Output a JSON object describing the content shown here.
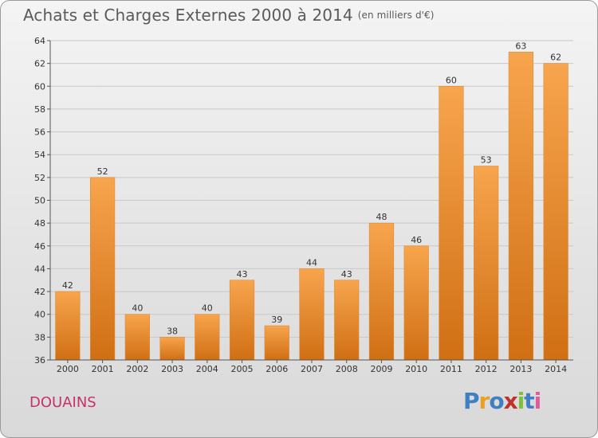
{
  "header": {
    "title": "Achats et Charges Externes 2000 à 2014",
    "unit": "(en milliers d'€)"
  },
  "footer": {
    "city": "DOUAINS",
    "logo_text": "Proxiti"
  },
  "colors": {
    "bar_top": "#f7a54e",
    "bar_bottom": "#d06f14",
    "city": "#c4326a",
    "logo": [
      "#3f7fc4",
      "#e9a026",
      "#3f7fc4",
      "#c0302c",
      "#7bbf3a",
      "#3f7fc4",
      "#e05a9e"
    ]
  },
  "chart_data": {
    "type": "bar",
    "categories": [
      "2000",
      "2001",
      "2002",
      "2003",
      "2004",
      "2005",
      "2006",
      "2007",
      "2008",
      "2009",
      "2010",
      "2011",
      "2012",
      "2013",
      "2014"
    ],
    "values": [
      42,
      52,
      40,
      38,
      40,
      43,
      39,
      44,
      43,
      48,
      46,
      60,
      53,
      63,
      62
    ],
    "title": "Achats et Charges Externes 2000 à 2014",
    "subtitle": "(en milliers d'€)",
    "xlabel": "",
    "ylabel": "",
    "ylim": [
      36,
      64
    ],
    "yticks": [
      36,
      38,
      40,
      42,
      44,
      46,
      48,
      50,
      52,
      54,
      56,
      58,
      60,
      62,
      64
    ],
    "grid": true,
    "data_labels": true
  }
}
